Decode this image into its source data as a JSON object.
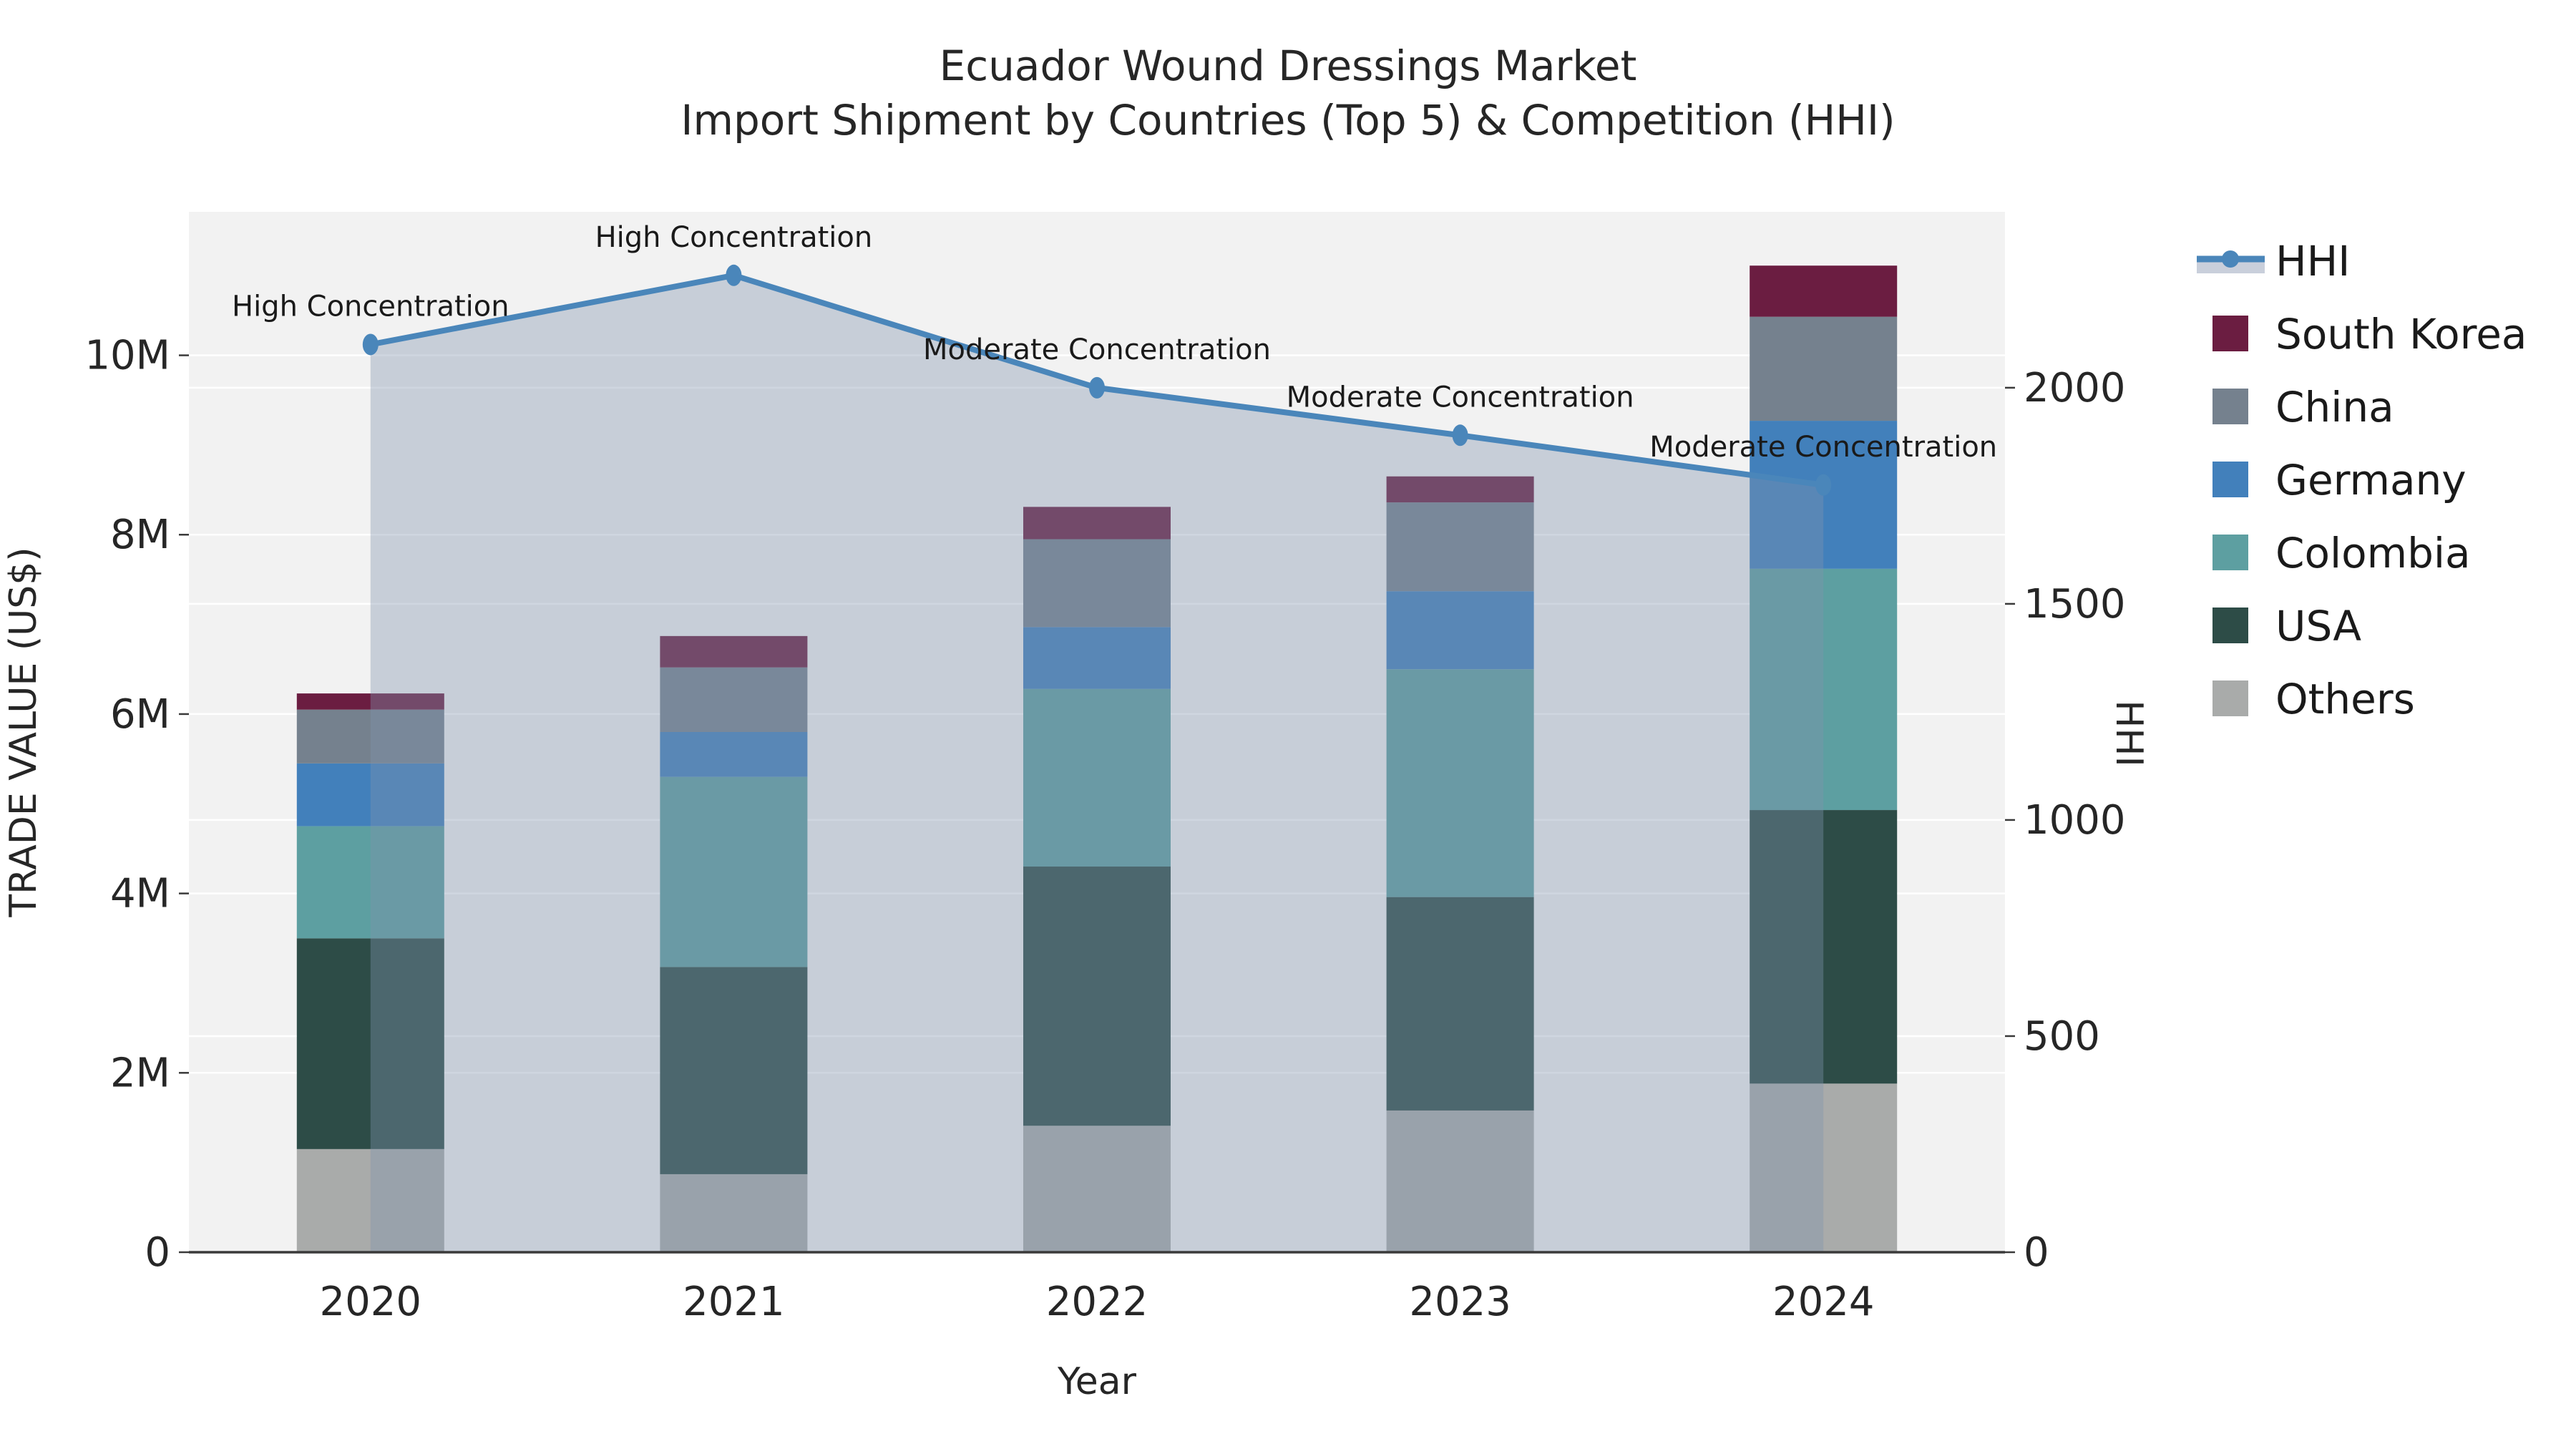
{
  "title": {
    "line1": "Ecuador Wound Dressings Market",
    "line2": "Import Shipment by Countries (Top 5) & Competition (HHI)"
  },
  "axes": {
    "x_label": "Year",
    "y_left_label": "TRADE VALUE (US$)",
    "y_right_label": "HHI",
    "y_left_ticks": [
      {
        "label": "0",
        "value": 0
      },
      {
        "label": "2M",
        "value": 2
      },
      {
        "label": "4M",
        "value": 4
      },
      {
        "label": "6M",
        "value": 6
      },
      {
        "label": "8M",
        "value": 8
      },
      {
        "label": "10M",
        "value": 10
      }
    ],
    "y_right_ticks": [
      {
        "label": "0",
        "value": 0
      },
      {
        "label": "500",
        "value": 500
      },
      {
        "label": "1000",
        "value": 1000
      },
      {
        "label": "1500",
        "value": 1500
      },
      {
        "label": "2000",
        "value": 2000
      }
    ]
  },
  "colors": {
    "plot_bg": "#f2f2f2",
    "grid": "#ffffff",
    "spine": "#3a3a3a",
    "tick": "#3a3a3a",
    "text": "#262626",
    "annotation": "#1a1a1a",
    "hhi_line": "#4a86ba",
    "hhi_area": "rgba(130,146,173,0.38)",
    "legend_band": "#c9cfdb"
  },
  "chart_data": {
    "type": "bar",
    "subtype": "stacked bars with HHI line + shaded area overlay (secondary axis)",
    "categories": [
      "2020",
      "2021",
      "2022",
      "2023",
      "2024"
    ],
    "stack_order_bottom_to_top": [
      "Others",
      "USA",
      "Colombia",
      "Germany",
      "China",
      "South Korea"
    ],
    "series": [
      {
        "name": "Others",
        "color": "#a9abaa",
        "values": [
          1.15,
          0.87,
          1.41,
          1.58,
          1.88
        ]
      },
      {
        "name": "USA",
        "color": "#2d4c47",
        "values": [
          2.35,
          2.31,
          2.89,
          2.38,
          3.05
        ]
      },
      {
        "name": "Colombia",
        "color": "#5d9fa1",
        "values": [
          1.25,
          2.12,
          1.98,
          2.54,
          2.69
        ]
      },
      {
        "name": "Germany",
        "color": "#4280bb",
        "values": [
          0.7,
          0.5,
          0.69,
          0.87,
          1.65
        ]
      },
      {
        "name": "China",
        "color": "#75818e",
        "values": [
          0.6,
          0.72,
          0.98,
          0.99,
          1.16
        ]
      },
      {
        "name": "South Korea",
        "color": "#6b1d41",
        "values": [
          0.18,
          0.35,
          0.36,
          0.29,
          0.57
        ]
      }
    ],
    "bar_totals": [
      6.23,
      6.87,
      8.31,
      8.65,
      11.0
    ],
    "value_units": "million US$",
    "line_series": {
      "name": "HHI",
      "values": [
        2100,
        2260,
        2000,
        1890,
        1775
      ],
      "axis": "right"
    },
    "annotations": [
      {
        "category": "2020",
        "label": "High Concentration"
      },
      {
        "category": "2021",
        "label": "High Concentration"
      },
      {
        "category": "2022",
        "label": "Moderate Concentration"
      },
      {
        "category": "2023",
        "label": "Moderate Concentration"
      },
      {
        "category": "2024",
        "label": "Moderate Concentration"
      }
    ],
    "title": "Ecuador Wound Dressings Market — Import Shipment by Countries (Top 5) & Competition (HHI)",
    "xlabel": "Year",
    "ylabel_left": "TRADE VALUE (US$)",
    "ylabel_right": "HHI",
    "y_left_max": 11.6,
    "y_right_max": 2407,
    "grid": true,
    "legend_position": "right"
  },
  "legend": {
    "items": [
      {
        "label": "HHI",
        "type": "line"
      },
      {
        "label": "South Korea",
        "type": "swatch",
        "color": "#6b1d41"
      },
      {
        "label": "China",
        "type": "swatch",
        "color": "#75818e"
      },
      {
        "label": "Germany",
        "type": "swatch",
        "color": "#4280bb"
      },
      {
        "label": "Colombia",
        "type": "swatch",
        "color": "#5d9fa1"
      },
      {
        "label": "USA",
        "type": "swatch",
        "color": "#2d4c47"
      },
      {
        "label": "Others",
        "type": "swatch",
        "color": "#a9abaa"
      }
    ]
  }
}
